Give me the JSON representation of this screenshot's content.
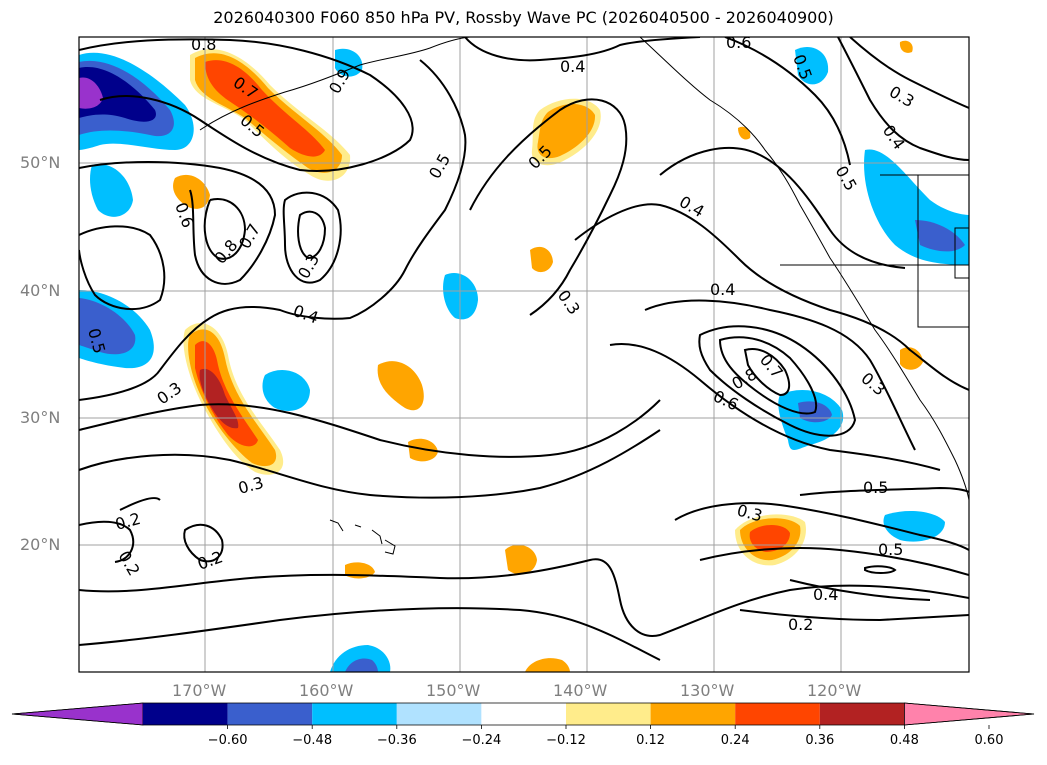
{
  "title": "2026040300 F060 850 hPa PV, Rossby Wave PC (2026040500 - 2026040900)",
  "lat_labels": [
    "50°N",
    "40°N",
    "30°N",
    "20°N"
  ],
  "lon_labels": [
    "170°W",
    "160°W",
    "150°W",
    "140°W",
    "130°W",
    "120°W"
  ],
  "colorbar": {
    "ticks": [
      "−0.60",
      "−0.48",
      "−0.36",
      "−0.24",
      "−0.12",
      "0.12",
      "0.24",
      "0.36",
      "0.48",
      "0.60"
    ],
    "colors": [
      "#9932cc",
      "#00008b",
      "#3a5fcd",
      "#00bfff",
      "#b0e2ff",
      "#ffffff",
      "#ffec8b",
      "#ffa500",
      "#ff4500",
      "#b22222",
      "#ff82ab"
    ]
  },
  "contour_labels": [
    "0.8",
    "0.7",
    "0.5",
    "0.4",
    "0.9",
    "0.6",
    "0.5",
    "0.3",
    "0.4",
    "0.5",
    "0.5",
    "0.6",
    "0.8",
    "0.7",
    "0.3",
    "0.4",
    "0.4",
    "0.5",
    "0.3",
    "0.4",
    "0.5",
    "0.7",
    "0.8",
    "0.6",
    "0.3",
    "0.3",
    "0.3",
    "0.2",
    "0.2",
    "0.2",
    "0.3",
    "0.5",
    "0.4",
    "0.2",
    "0.5"
  ]
}
